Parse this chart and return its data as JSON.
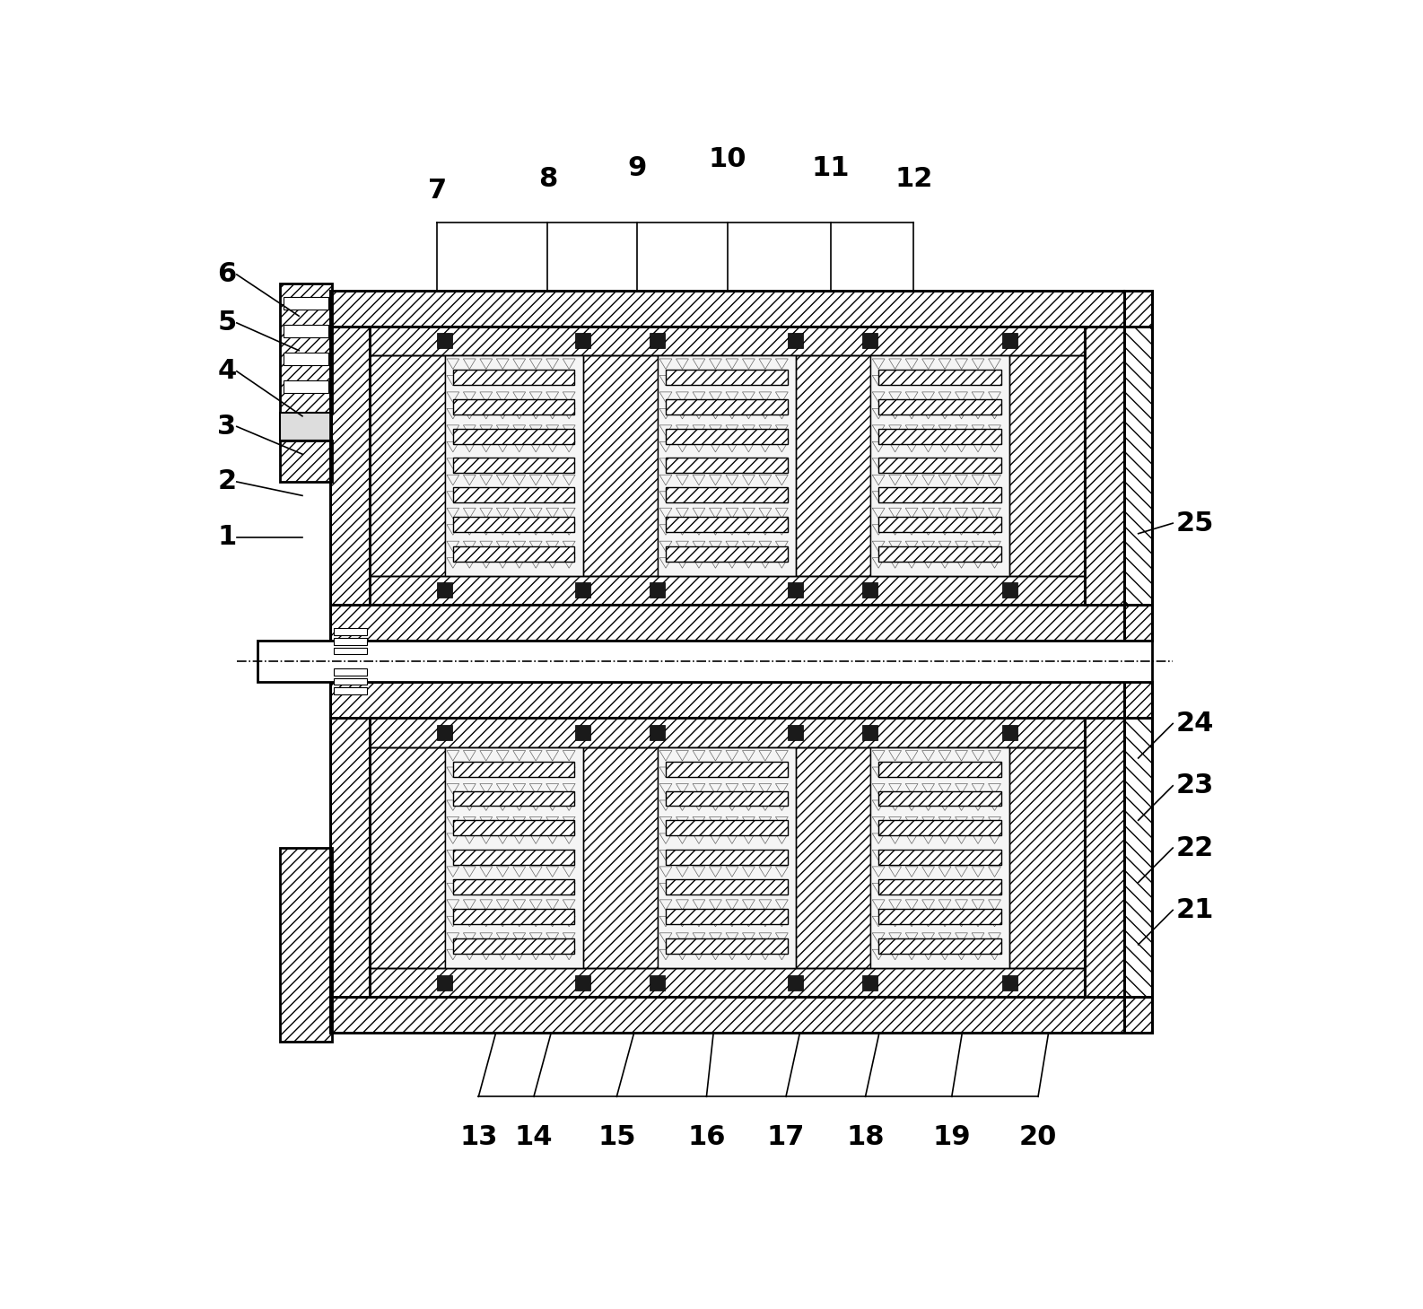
{
  "figsize": [
    15.86,
    14.59
  ],
  "dpi": 100,
  "bg_color": "#ffffff",
  "line_color": "#000000",
  "labels_top": [
    [
      "7",
      370,
      68,
      370,
      195
    ],
    [
      "8",
      530,
      50,
      530,
      195
    ],
    [
      "9",
      660,
      35,
      660,
      195
    ],
    [
      "10",
      790,
      22,
      790,
      195
    ],
    [
      "11",
      940,
      35,
      940,
      195
    ],
    [
      "12",
      1060,
      50,
      1060,
      195
    ]
  ],
  "labels_left": [
    [
      "6",
      52,
      170,
      170,
      230
    ],
    [
      "5",
      52,
      240,
      170,
      280
    ],
    [
      "4",
      52,
      310,
      175,
      375
    ],
    [
      "3",
      52,
      390,
      175,
      430
    ],
    [
      "2",
      52,
      470,
      175,
      490
    ],
    [
      "1",
      52,
      550,
      175,
      550
    ]
  ],
  "labels_right": [
    [
      "25",
      1440,
      530,
      1385,
      545
    ],
    [
      "24",
      1440,
      820,
      1385,
      870
    ],
    [
      "23",
      1440,
      910,
      1385,
      960
    ],
    [
      "22",
      1440,
      1000,
      1385,
      1050
    ],
    [
      "21",
      1440,
      1090,
      1385,
      1140
    ]
  ],
  "labels_bottom": [
    [
      "13",
      430,
      1400,
      455,
      1268
    ],
    [
      "14",
      510,
      1400,
      535,
      1268
    ],
    [
      "15",
      630,
      1400,
      655,
      1268
    ],
    [
      "16",
      760,
      1400,
      770,
      1268
    ],
    [
      "17",
      875,
      1400,
      895,
      1268
    ],
    [
      "18",
      990,
      1400,
      1010,
      1268
    ],
    [
      "19",
      1115,
      1400,
      1130,
      1268
    ],
    [
      "20",
      1240,
      1400,
      1255,
      1268
    ]
  ]
}
